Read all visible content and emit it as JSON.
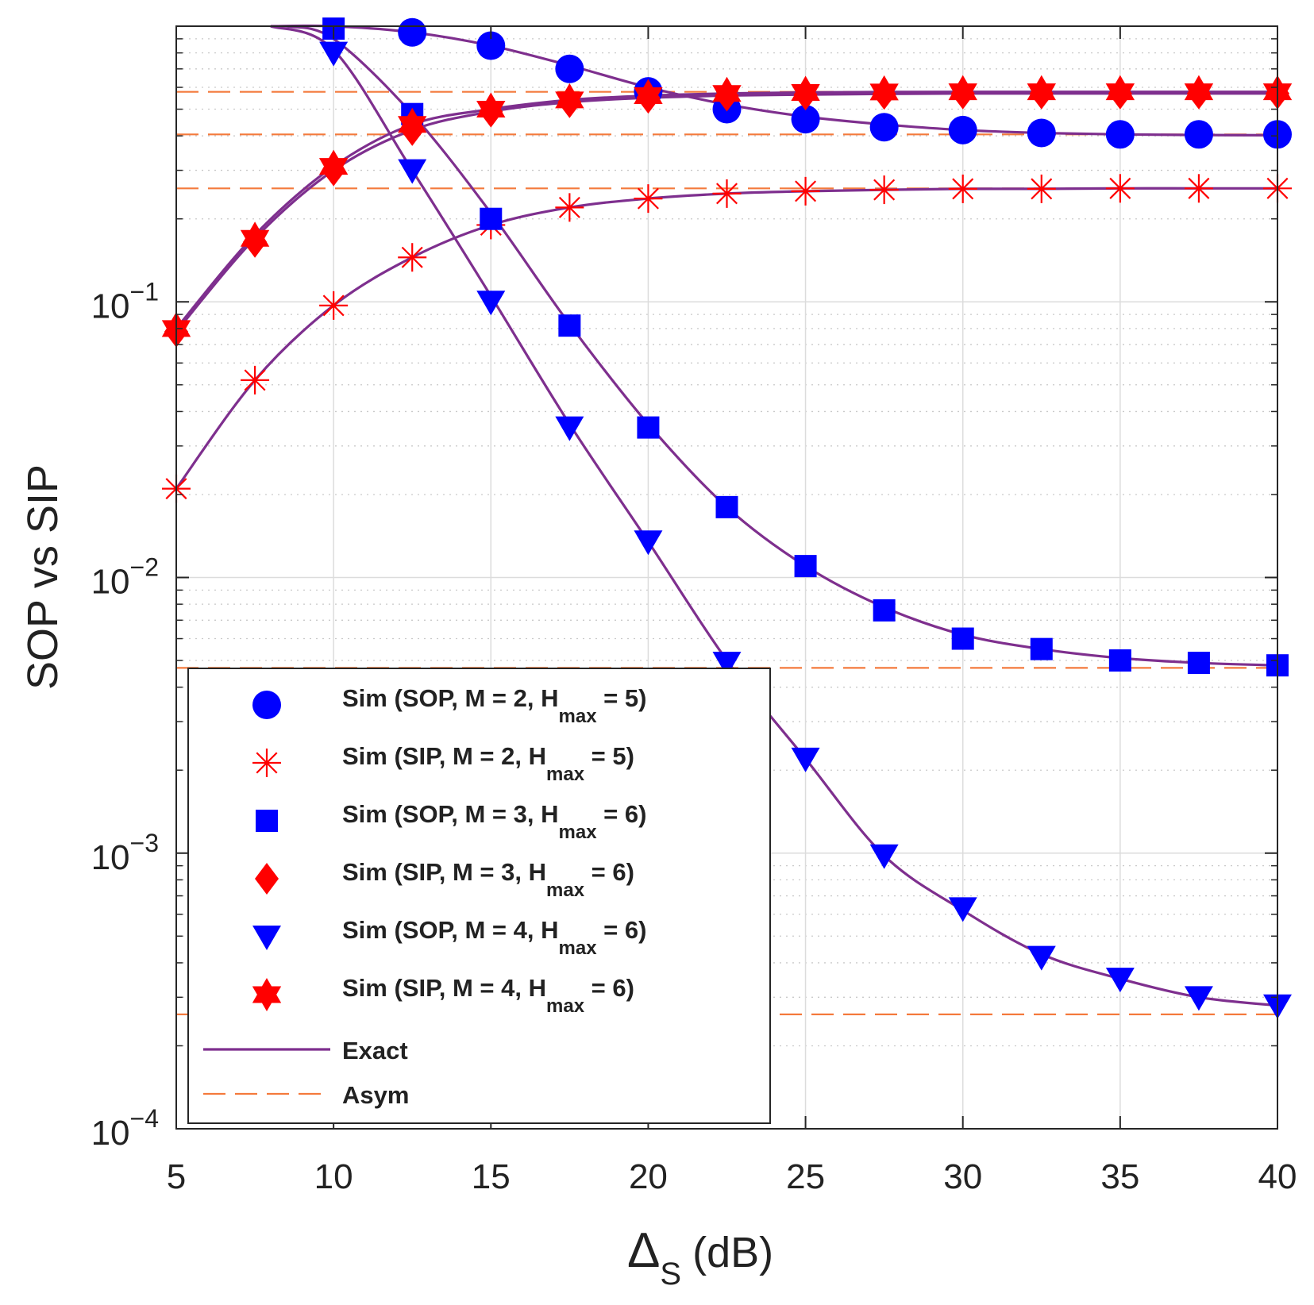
{
  "chart_data": {
    "type": "line",
    "ylabel": "SOP vs SIP",
    "xlabel": {
      "main": "Δ",
      "sub": "S",
      "unit": "(dB)"
    },
    "xscale": "linear",
    "yscale": "log",
    "xlim": [
      5,
      40
    ],
    "ylim": [
      0.0001,
      1
    ],
    "x_ticks": [
      5,
      10,
      15,
      20,
      25,
      30,
      35,
      40
    ],
    "x_tick_labels": [
      "5",
      "10",
      "15",
      "20",
      "25",
      "30",
      "35",
      "40"
    ],
    "y_ticks": [
      0.0001,
      0.001,
      0.01,
      0.1
    ],
    "y_tick_labels": [
      {
        "base": "10",
        "exp": "−4"
      },
      {
        "base": "10",
        "exp": "−3"
      },
      {
        "base": "10",
        "exp": "−2"
      },
      {
        "base": "10",
        "exp": "−1"
      }
    ],
    "grid": true,
    "legend_position": "bottom-left",
    "x": [
      5,
      7.5,
      10,
      12.5,
      15,
      17.5,
      20,
      22.5,
      25,
      27.5,
      30,
      32.5,
      35,
      37.5,
      40
    ],
    "series": [
      {
        "name": "Sim (SOP, M = 2, H",
        "sub": "max",
        "suffix": " = 5)",
        "marker": "circle",
        "color": "#0000ff",
        "values": [
          null,
          null,
          null,
          0.95,
          0.85,
          0.7,
          0.58,
          0.5,
          0.46,
          0.43,
          0.42,
          0.41,
          0.405,
          0.405,
          0.405
        ],
        "exact": [
          [
            8,
            1.0
          ],
          [
            10,
            1.0
          ],
          [
            12.5,
            0.95
          ],
          [
            15,
            0.85
          ],
          [
            17.5,
            0.72
          ],
          [
            20,
            0.6
          ],
          [
            22.5,
            0.52
          ],
          [
            25,
            0.47
          ],
          [
            27.5,
            0.44
          ],
          [
            30,
            0.42
          ],
          [
            32.5,
            0.41
          ],
          [
            35,
            0.405
          ],
          [
            37.5,
            0.403
          ],
          [
            40,
            0.402
          ]
        ]
      },
      {
        "name": "Sim (SIP, M = 2, H",
        "sub": "max",
        "suffix": " = 5)",
        "marker": "asterisk",
        "color": "#ff0000",
        "values": [
          0.021,
          0.052,
          0.097,
          0.145,
          0.19,
          0.22,
          0.237,
          0.247,
          0.252,
          0.255,
          0.257,
          0.257,
          0.258,
          0.258,
          0.258
        ],
        "exact": [
          [
            5,
            0.021
          ],
          [
            7.5,
            0.052
          ],
          [
            10,
            0.097
          ],
          [
            12.5,
            0.145
          ],
          [
            15,
            0.19
          ],
          [
            17.5,
            0.22
          ],
          [
            20,
            0.237
          ],
          [
            22.5,
            0.247
          ],
          [
            25,
            0.252
          ],
          [
            27.5,
            0.255
          ],
          [
            30,
            0.257
          ],
          [
            32.5,
            0.257
          ],
          [
            35,
            0.258
          ],
          [
            37.5,
            0.258
          ],
          [
            40,
            0.258
          ]
        ]
      },
      {
        "name": "Sim (SOP, M = 3, H",
        "sub": "max",
        "suffix": " = 6)",
        "marker": "square",
        "color": "#0000ff",
        "values": [
          null,
          null,
          0.98,
          0.48,
          0.2,
          0.082,
          0.035,
          0.018,
          0.011,
          0.0076,
          0.006,
          0.0055,
          0.005,
          0.0049,
          0.0048
        ],
        "exact": [
          [
            8.5,
            1.0
          ],
          [
            10,
            0.9
          ],
          [
            12.5,
            0.48
          ],
          [
            15,
            0.21
          ],
          [
            17.5,
            0.083
          ],
          [
            20,
            0.036
          ],
          [
            22.5,
            0.018
          ],
          [
            25,
            0.011
          ],
          [
            27.5,
            0.0078
          ],
          [
            30,
            0.0062
          ],
          [
            32.5,
            0.0055
          ],
          [
            35,
            0.0051
          ],
          [
            37.5,
            0.0049
          ],
          [
            40,
            0.0048
          ]
        ]
      },
      {
        "name": "Sim (SIP, M = 3, H",
        "sub": "max",
        "suffix": " = 6)",
        "marker": "diamond",
        "color": "#ff0000",
        "values": [
          0.078,
          0.165,
          0.3,
          0.42,
          0.49,
          0.53,
          0.55,
          0.56,
          0.565,
          0.568,
          0.57,
          0.57,
          0.57,
          0.57,
          0.57
        ],
        "exact": [
          [
            5,
            0.078
          ],
          [
            7.5,
            0.17
          ],
          [
            10,
            0.3
          ],
          [
            12.5,
            0.42
          ],
          [
            15,
            0.49
          ],
          [
            17.5,
            0.53
          ],
          [
            20,
            0.55
          ],
          [
            22.5,
            0.56
          ],
          [
            25,
            0.565
          ],
          [
            27.5,
            0.568
          ],
          [
            30,
            0.57
          ],
          [
            32.5,
            0.57
          ],
          [
            35,
            0.57
          ],
          [
            37.5,
            0.57
          ],
          [
            40,
            0.57
          ]
        ]
      },
      {
        "name": "Sim (SOP, M = 4, H",
        "sub": "max",
        "suffix": " = 6)",
        "marker": "triangle-down",
        "color": "#0000ff",
        "values": [
          null,
          null,
          0.8,
          0.3,
          0.1,
          0.035,
          0.0135,
          0.0049,
          0.0022,
          0.00098,
          0.00063,
          0.00042,
          0.00035,
          0.0003,
          0.00028
        ],
        "exact": [
          [
            8,
            1.0
          ],
          [
            10,
            0.82
          ],
          [
            12.5,
            0.3
          ],
          [
            15,
            0.105
          ],
          [
            17.5,
            0.036
          ],
          [
            20,
            0.0135
          ],
          [
            22.5,
            0.005
          ],
          [
            25,
            0.0022
          ],
          [
            27.5,
            0.00098
          ],
          [
            30,
            0.00062
          ],
          [
            32.5,
            0.00043
          ],
          [
            35,
            0.00035
          ],
          [
            37.5,
            0.0003
          ],
          [
            40,
            0.00028
          ]
        ]
      },
      {
        "name": "Sim (SIP, M = 4, H",
        "sub": "max",
        "suffix": " = 6)",
        "marker": "hexagram",
        "color": "#ff0000",
        "values": [
          0.08,
          0.17,
          0.31,
          0.44,
          0.5,
          0.54,
          0.56,
          0.57,
          0.575,
          0.577,
          0.578,
          0.578,
          0.578,
          0.578,
          0.578
        ],
        "exact": [
          [
            5,
            0.08
          ],
          [
            7.5,
            0.175
          ],
          [
            10,
            0.31
          ],
          [
            12.5,
            0.44
          ],
          [
            15,
            0.5
          ],
          [
            17.5,
            0.54
          ],
          [
            20,
            0.56
          ],
          [
            22.5,
            0.57
          ],
          [
            25,
            0.575
          ],
          [
            27.5,
            0.577
          ],
          [
            30,
            0.578
          ],
          [
            32.5,
            0.578
          ],
          [
            35,
            0.578
          ],
          [
            37.5,
            0.578
          ],
          [
            40,
            0.578
          ]
        ]
      }
    ],
    "exact_label": "Exact",
    "exact_color": "#7e2f8e",
    "asym_label": "Asym",
    "asym_color": "#f47a3c",
    "asymptotes": [
      0.578,
      0.405,
      0.258,
      0.0047,
      0.00026
    ]
  }
}
